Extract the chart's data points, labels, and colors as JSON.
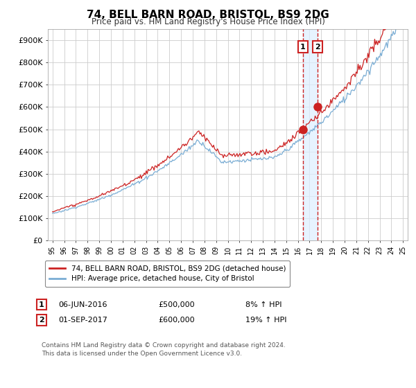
{
  "title": "74, BELL BARN ROAD, BRISTOL, BS9 2DG",
  "subtitle": "Price paid vs. HM Land Registry's House Price Index (HPI)",
  "ylabel_ticks": [
    "£0",
    "£100K",
    "£200K",
    "£300K",
    "£400K",
    "£500K",
    "£600K",
    "£700K",
    "£800K",
    "£900K"
  ],
  "ytick_values": [
    0,
    100000,
    200000,
    300000,
    400000,
    500000,
    600000,
    700000,
    800000,
    900000
  ],
  "ylim": [
    0,
    950000
  ],
  "hpi_color": "#7aadd4",
  "price_color": "#cc2222",
  "legend_label_price": "74, BELL BARN ROAD, BRISTOL, BS9 2DG (detached house)",
  "legend_label_hpi": "HPI: Average price, detached house, City of Bristol",
  "transaction1_date": 2016.44,
  "transaction1_price": 500000,
  "transaction2_date": 2017.67,
  "transaction2_price": 600000,
  "footer": "Contains HM Land Registry data © Crown copyright and database right 2024.\nThis data is licensed under the Open Government Licence v3.0.",
  "background_color": "#ffffff",
  "grid_color": "#cccccc",
  "shade_color": "#ddeeff"
}
